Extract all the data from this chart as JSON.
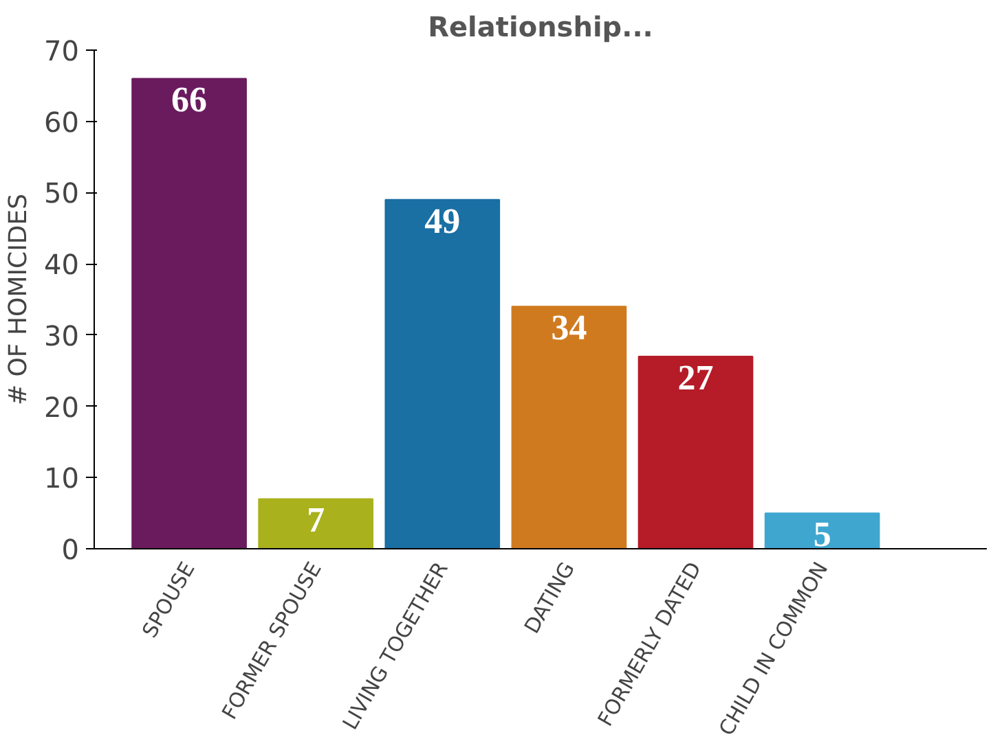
{
  "chart_data": {
    "type": "bar",
    "title": "Relationship...",
    "ylabel": "# OF HOMICIDES",
    "categories": [
      "SPOUSE",
      "FORMER SPOUSE",
      "LIVING TOGETHER",
      "DATING",
      "FORMERLY DATED",
      "CHILD IN COMMON"
    ],
    "values": [
      66,
      7,
      49,
      34,
      27,
      5
    ],
    "colors": [
      "#6a1b5e",
      "#a9b11c",
      "#1a6fa3",
      "#d07a1f",
      "#b51c27",
      "#3fa6d0"
    ],
    "ylim": [
      0,
      70
    ],
    "yticks": [
      0,
      10,
      20,
      30,
      40,
      50,
      60,
      70
    ],
    "grid": false,
    "data_labels": true
  }
}
